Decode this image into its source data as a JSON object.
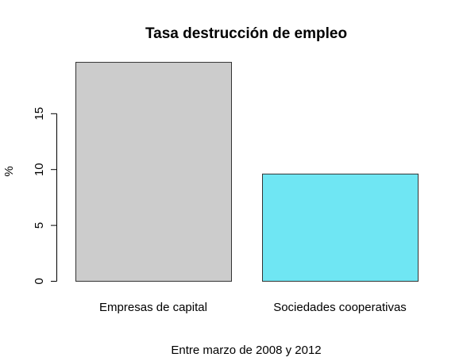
{
  "chart_data": {
    "type": "bar",
    "title": "Tasa destrucción de empleo",
    "xlabel": "Entre marzo de 2008 y 2012",
    "ylabel": "%",
    "categories": [
      "Empresas de capital",
      "Sociedades cooperativas"
    ],
    "values": [
      19.6,
      9.6
    ],
    "colors": [
      "#cccccc",
      "#6fe6f3"
    ],
    "yticks": [
      "0",
      "5",
      "10",
      "15"
    ],
    "ylim": [
      0,
      20
    ],
    "grid": false,
    "legend": "none"
  }
}
